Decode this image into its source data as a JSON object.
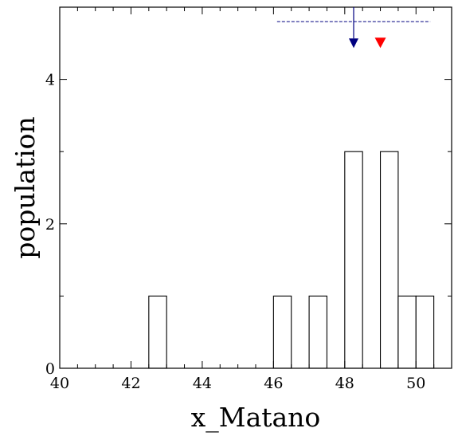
{
  "chart_data": {
    "type": "histogram",
    "xlabel": "x_Matano",
    "ylabel": "population",
    "xlim": [
      40,
      51.0
    ],
    "ylim": [
      0,
      5.0
    ],
    "xticks": [
      40,
      42,
      44,
      46,
      48,
      50
    ],
    "yticks": [
      0,
      2,
      4
    ],
    "x_minor_step": 0.5,
    "y_minor_step": 1,
    "bin_width": 0.5,
    "bars": [
      {
        "x0": 42.5,
        "x1": 43.0,
        "count": 1
      },
      {
        "x0": 46.0,
        "x1": 46.5,
        "count": 1
      },
      {
        "x0": 47.0,
        "x1": 47.5,
        "count": 1
      },
      {
        "x0": 48.0,
        "x1": 48.5,
        "count": 3
      },
      {
        "x0": 49.0,
        "x1": 49.5,
        "count": 3
      },
      {
        "x0": 49.5,
        "x1": 50.0,
        "count": 1
      },
      {
        "x0": 50.0,
        "x1": 50.5,
        "count": 1
      }
    ],
    "markers": [
      {
        "type": "arrow-down",
        "x": 48.25,
        "y": 4.5,
        "color": "#000080",
        "vertical_line_from_y": 5.0
      },
      {
        "type": "triangle-down",
        "x": 49.0,
        "y": 4.5,
        "color": "#ff0000"
      }
    ],
    "range_line": {
      "x0": 46.1,
      "x1": 50.4,
      "y": 4.8,
      "color": "#000080",
      "style": "dashed"
    },
    "colors": {
      "bar_fill": "#ffffff",
      "bar_stroke": "#000000",
      "axis": "#000000"
    },
    "grid": false,
    "legend": "none"
  }
}
